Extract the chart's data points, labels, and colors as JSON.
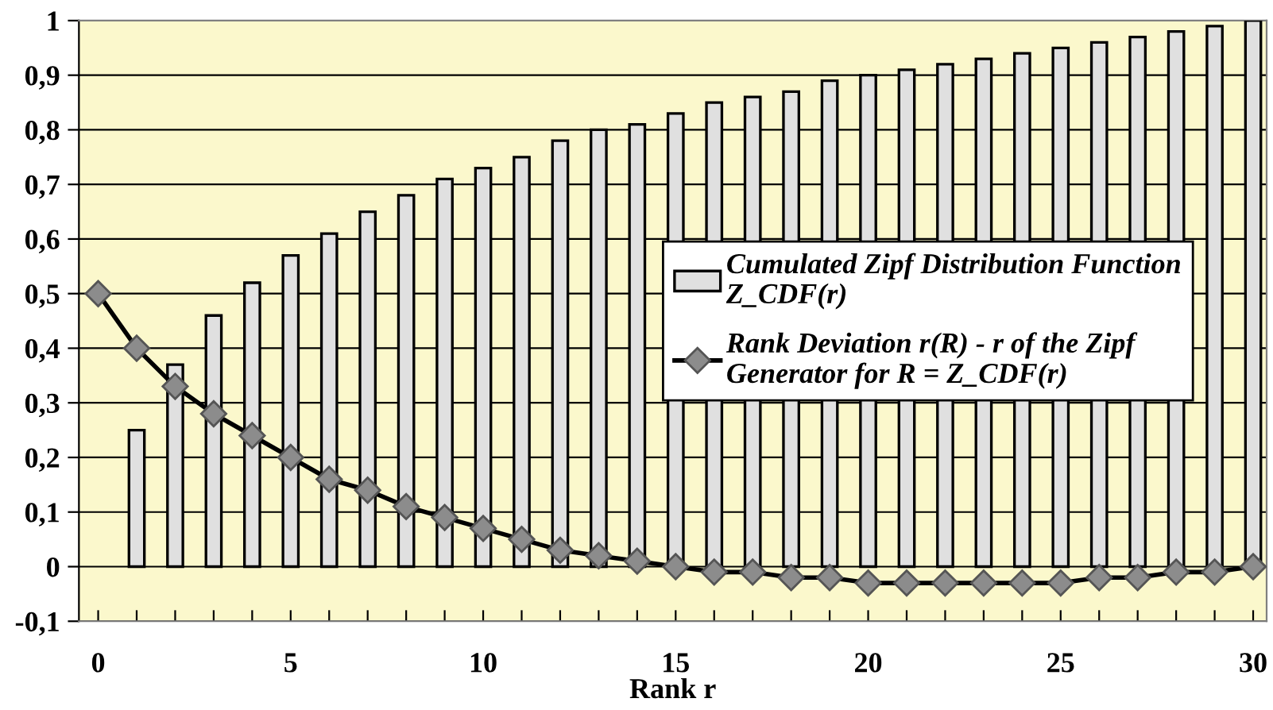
{
  "chart_data": {
    "type": "bar",
    "xlabel": "Rank r",
    "xlim": [
      -0.5,
      30.35
    ],
    "ylim": [
      -0.1,
      1
    ],
    "xticks": [
      0,
      {
        "value": 1,
        "label": null
      },
      {
        "value": 2,
        "label": null
      },
      {
        "value": 3,
        "label": null
      },
      {
        "value": 4,
        "label": null
      },
      5,
      {
        "value": 6,
        "label": null
      },
      {
        "value": 7,
        "label": null
      },
      {
        "value": 8,
        "label": null
      },
      {
        "value": 9,
        "label": null
      },
      10,
      {
        "value": 11,
        "label": null
      },
      {
        "value": 12,
        "label": null
      },
      {
        "value": 13,
        "label": null
      },
      {
        "value": 14,
        "label": null
      },
      15,
      {
        "value": 16,
        "label": null
      },
      {
        "value": 17,
        "label": null
      },
      {
        "value": 18,
        "label": null
      },
      {
        "value": 19,
        "label": null
      },
      20,
      {
        "value": 21,
        "label": null
      },
      {
        "value": 22,
        "label": null
      },
      {
        "value": 23,
        "label": null
      },
      {
        "value": 24,
        "label": null
      },
      25,
      {
        "value": 26,
        "label": null
      },
      {
        "value": 27,
        "label": null
      },
      {
        "value": 28,
        "label": null
      },
      {
        "value": 29,
        "label": null
      },
      30
    ],
    "yticks": [
      {
        "value": -0.1,
        "label": "-0,1"
      },
      0,
      {
        "value": 0.1,
        "label": "0,1"
      },
      {
        "value": 0.2,
        "label": "0,2"
      },
      {
        "value": 0.3,
        "label": "0,3"
      },
      {
        "value": 0.4,
        "label": "0,4"
      },
      {
        "value": 0.5,
        "label": "0,5"
      },
      {
        "value": 0.6,
        "label": "0,6"
      },
      {
        "value": 0.7,
        "label": "0,7"
      },
      {
        "value": 0.8,
        "label": "0,8"
      },
      {
        "value": 0.9,
        "label": "0,9"
      },
      1
    ],
    "grid": "y",
    "legend": "right",
    "series": [
      {
        "name": "Cumulated Zipf Distribution Function Z_CDF(r)",
        "color": "#e0e0e0",
        "x": [
          1,
          2,
          3,
          4,
          5,
          6,
          7,
          8,
          9,
          10,
          11,
          12,
          13,
          14,
          15,
          16,
          17,
          18,
          19,
          20,
          21,
          22,
          23,
          24,
          25,
          26,
          27,
          28,
          29,
          30
        ],
        "values": [
          0.25,
          0.37,
          0.46,
          0.52,
          0.57,
          0.61,
          0.65,
          0.68,
          0.71,
          0.73,
          0.75,
          0.78,
          0.8,
          0.81,
          0.83,
          0.85,
          0.86,
          0.87,
          0.89,
          0.9,
          0.91,
          0.92,
          0.93,
          0.94,
          0.95,
          0.96,
          0.97,
          0.98,
          0.99,
          1.0
        ]
      },
      {
        "name": "Rank Deviation r(R) - r of the Zipf Generator for R = Z_CDF(r)",
        "type": "line",
        "color": "#000000",
        "marker": "diamond",
        "x": [
          0,
          1,
          2,
          3,
          4,
          5,
          6,
          7,
          8,
          9,
          10,
          11,
          12,
          13,
          14,
          15,
          16,
          17,
          18,
          19,
          20,
          21,
          22,
          23,
          24,
          25,
          26,
          27,
          28,
          29,
          30
        ],
        "values": [
          0.5,
          0.4,
          0.33,
          0.28,
          0.24,
          0.2,
          0.16,
          0.14,
          0.11,
          0.09,
          0.07,
          0.05,
          0.03,
          0.02,
          0.01,
          0.0,
          -0.01,
          -0.01,
          -0.02,
          -0.02,
          -0.03,
          -0.03,
          -0.03,
          -0.03,
          -0.03,
          -0.03,
          -0.02,
          -0.02,
          -0.01,
          -0.01,
          0.0
        ]
      }
    ]
  }
}
